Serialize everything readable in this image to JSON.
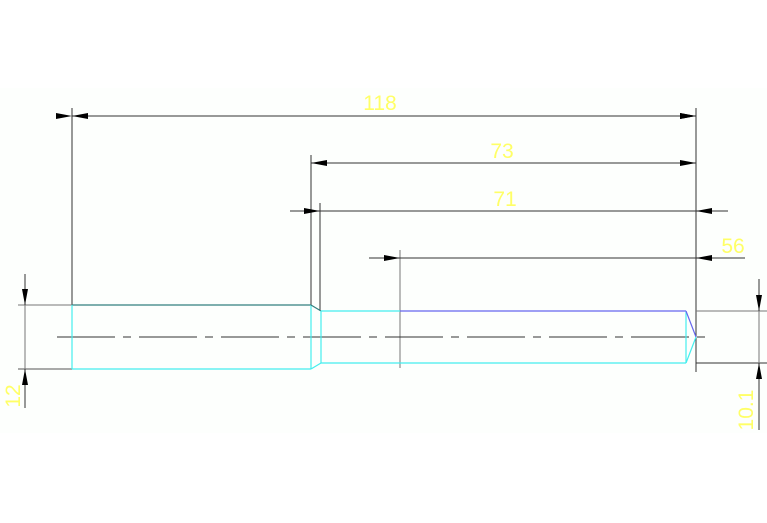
{
  "dimensions": {
    "overall_length": "118",
    "length_73": "73",
    "length_71": "71",
    "length_56": "56",
    "diameter_left": "12",
    "diameter_right": "10.1"
  },
  "colors": {
    "background": "#fdfffd",
    "dimension_text": "#ffff66",
    "dimension_line": "#555555",
    "part_edge": "#44eeee",
    "part_edge_blue": "#6666ee",
    "part_edge_teal": "#337f7f"
  }
}
